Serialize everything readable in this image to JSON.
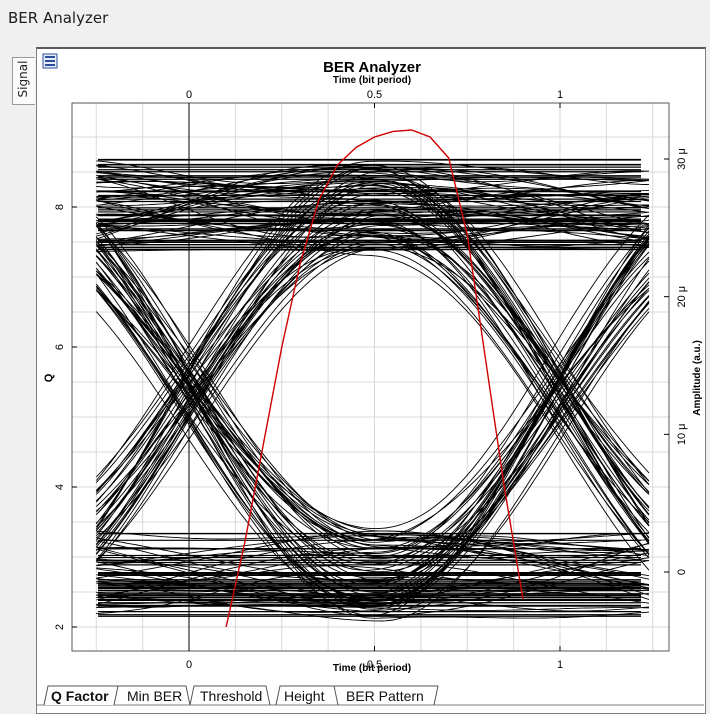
{
  "window": {
    "title": "BER Analyzer"
  },
  "side_tab": {
    "label": "Signal"
  },
  "chart_data": {
    "type": "line",
    "title": "BER Analyzer",
    "x_axis_top": {
      "label": "Time (bit period)",
      "ticks": [
        "0",
        "0.5",
        "1"
      ]
    },
    "x_axis_bottom": {
      "label": "Time (bit period)",
      "ticks": [
        "0",
        "0.5",
        "1"
      ]
    },
    "y_axis_left": {
      "label": "Q",
      "ticks": [
        "2",
        "4",
        "6",
        "8"
      ],
      "range": [
        1.8,
        9.6
      ]
    },
    "y_axis_right": {
      "label": "Amplitude (a.u.)",
      "ticks": [
        "0",
        "10 μ",
        "20 μ",
        "30 μ"
      ],
      "range": [
        -4e-06,
        3.4e-05
      ]
    },
    "x_range": [
      -0.25,
      1.25
    ],
    "grid": true,
    "eye": {
      "high_level": 8.0,
      "low_level": 2.75,
      "crossing_level": 5.4,
      "crossings": [
        0.0,
        1.0
      ],
      "eye_open_top": 7.25,
      "eye_open_bottom": 3.35
    },
    "q_curve": {
      "color": "#d00000",
      "x": [
        0.1,
        0.15,
        0.2,
        0.25,
        0.3,
        0.35,
        0.4,
        0.45,
        0.5,
        0.55,
        0.6,
        0.65,
        0.7,
        0.75,
        0.8,
        0.85,
        0.9
      ],
      "y": [
        2.0,
        3.2,
        4.6,
        6.0,
        7.2,
        8.1,
        8.6,
        8.85,
        9.0,
        9.08,
        9.1,
        9.0,
        8.7,
        7.6,
        5.8,
        4.0,
        2.4
      ]
    }
  },
  "bottom_tabs": [
    "Q Factor",
    "Min BER",
    "Threshold",
    "Height",
    "BER Pattern"
  ]
}
